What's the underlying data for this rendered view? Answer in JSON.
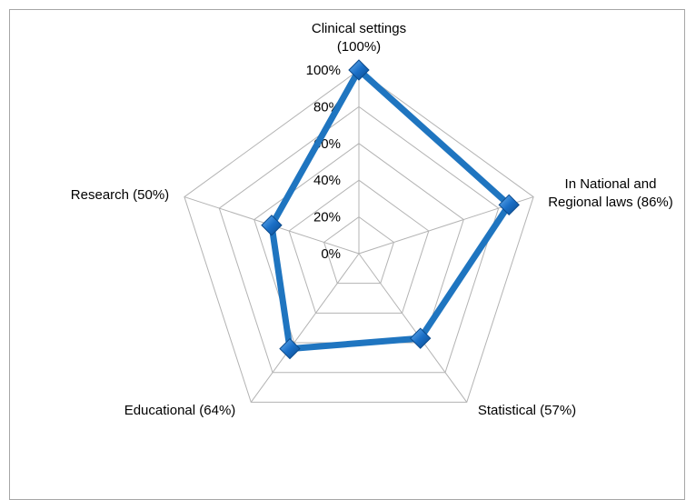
{
  "chart_data": {
    "type": "radar",
    "categories": [
      {
        "lines": [
          "Clinical settings",
          "(100%)"
        ]
      },
      {
        "lines": [
          "In National and",
          "Regional laws (86%)"
        ]
      },
      {
        "lines": [
          "Statistical (57%)"
        ]
      },
      {
        "lines": [
          "Educational (64%)"
        ]
      },
      {
        "lines": [
          "Research (50%)"
        ]
      }
    ],
    "series": [
      {
        "values": [
          100,
          86,
          57,
          64,
          50
        ],
        "color": "#1f75c0"
      }
    ],
    "r_ticks": [
      "0%",
      "20%",
      "40%",
      "60%",
      "80%",
      "100%"
    ],
    "r_range": [
      0,
      100
    ],
    "marker": "diamond",
    "marker_color": "#1a6fc7",
    "grid_color": "#b3b3b3",
    "legend": "none"
  }
}
